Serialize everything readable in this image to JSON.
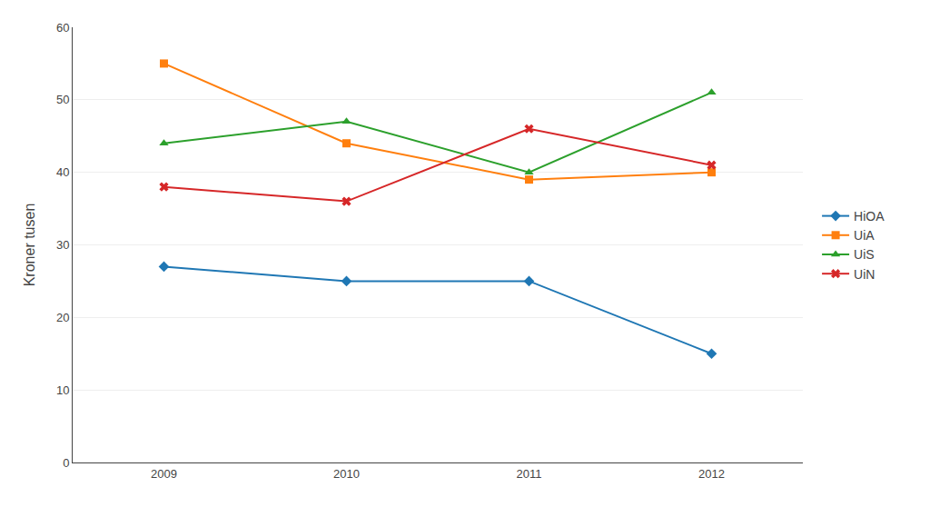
{
  "chart_data": {
    "type": "line",
    "y_label": "Kroner tusen",
    "x": [
      2009,
      2010,
      2011,
      2012
    ],
    "series": [
      {
        "name": "HiOA",
        "values": [
          27,
          25,
          25,
          15
        ],
        "marker": "diamond"
      },
      {
        "name": "UiA",
        "values": [
          55,
          44,
          39,
          40
        ],
        "marker": "square"
      },
      {
        "name": "UiS",
        "values": [
          44,
          47,
          40,
          51
        ],
        "marker": "triangle-up"
      },
      {
        "name": "UiN",
        "values": [
          38,
          36,
          46,
          41
        ],
        "marker": "x"
      }
    ],
    "xlim": [
      2008.5,
      2012.5
    ],
    "xticks": [
      2009,
      2010,
      2011,
      2012
    ],
    "ylim": [
      0,
      60
    ],
    "yticks": [
      0,
      10,
      20,
      30,
      40,
      50,
      60
    ],
    "grid": "y",
    "legend": "right"
  }
}
